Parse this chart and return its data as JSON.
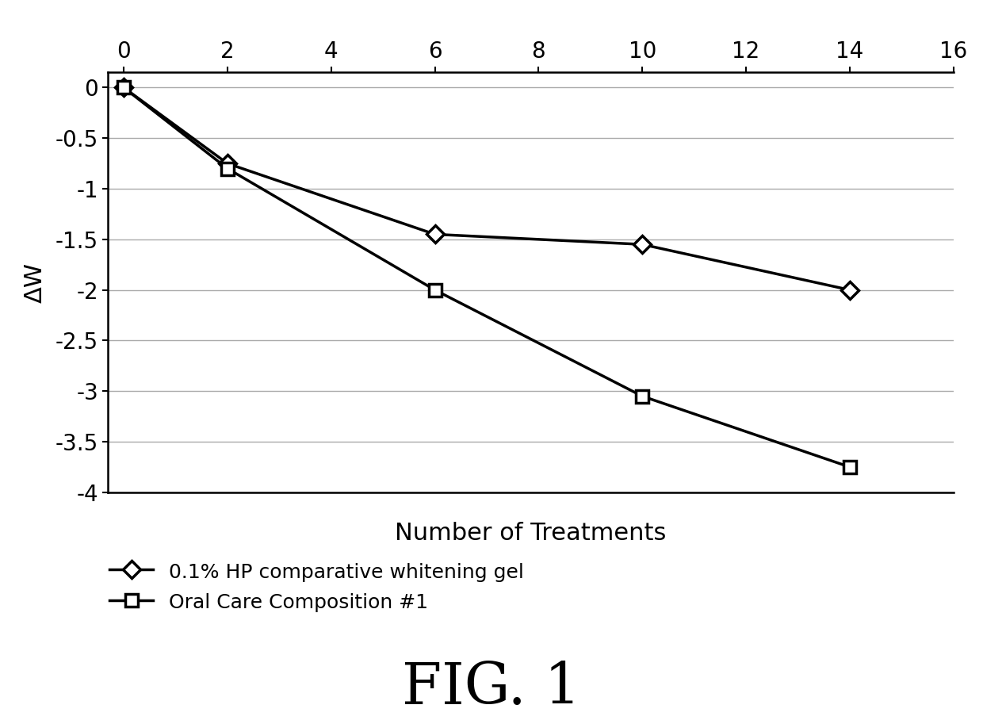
{
  "series1_name": "0.1% HP comparative whitening gel",
  "series1_x": [
    0,
    2,
    6,
    10,
    14
  ],
  "series1_y": [
    0,
    -0.75,
    -1.45,
    -1.55,
    -2.0
  ],
  "series2_name": "Oral Care Composition #1",
  "series2_x": [
    0,
    2,
    6,
    10,
    14
  ],
  "series2_y": [
    0,
    -0.8,
    -2.0,
    -3.05,
    -3.75
  ],
  "xlabel": "Number of Treatments",
  "ylabel": "ΔW",
  "xlim": [
    -0.3,
    16
  ],
  "ylim": [
    -4.0,
    0.15
  ],
  "xticks": [
    0,
    2,
    4,
    6,
    8,
    10,
    12,
    14,
    16
  ],
  "yticks": [
    0,
    -0.5,
    -1.0,
    -1.5,
    -2.0,
    -2.5,
    -3.0,
    -3.5,
    -4.0
  ],
  "ytick_labels": [
    "0",
    "-0.5",
    "-1",
    "-1.5",
    "-2",
    "-2.5",
    "-3",
    "-3.5",
    "-4"
  ],
  "line_color": "#000000",
  "line_width": 2.5,
  "marker_size": 11,
  "marker_facecolor": "#ffffff",
  "marker_edgecolor": "#000000",
  "marker_edgewidth": 2.5,
  "grid_color": "#aaaaaa",
  "background_color": "#ffffff",
  "fig_title": "FIG. 1",
  "title_fontsize": 52,
  "xlabel_fontsize": 22,
  "ylabel_fontsize": 22,
  "tick_fontsize": 20,
  "legend_fontsize": 18
}
